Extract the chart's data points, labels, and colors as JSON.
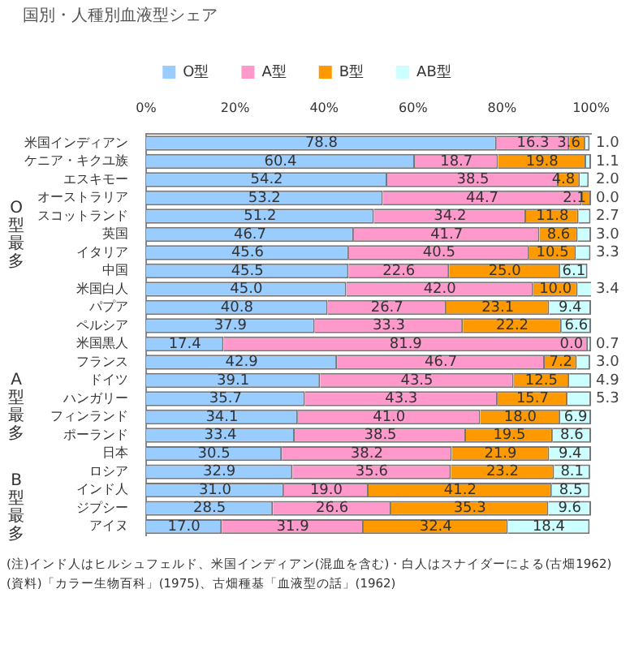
{
  "chart_data": {
    "type": "bar",
    "orientation": "horizontal",
    "stacked": true,
    "title": "国別・人種別血液型シェア",
    "categories": [
      "米国インディアン",
      "ケニア・キクユ族",
      "エスキモー",
      "オーストラリア",
      "スコットランド",
      "英国",
      "イタリア",
      "中国",
      "米国白人",
      "パプア",
      "ペルシア",
      "米国黒人",
      "フランス",
      "ドイツ",
      "ハンガリー",
      "フィンランド",
      "ポーランド",
      "日本",
      "ロシア",
      "インド人",
      "ジプシー",
      "アイヌ"
    ],
    "series": [
      {
        "name": "O型",
        "color": "#99ccff",
        "values": [
          78.8,
          60.4,
          54.2,
          53.2,
          51.2,
          46.7,
          45.6,
          45.5,
          45.0,
          40.8,
          37.9,
          17.4,
          42.9,
          39.1,
          35.7,
          34.1,
          33.4,
          30.5,
          32.9,
          31.0,
          28.5,
          17.0
        ],
        "value_labels": [
          "78.8",
          "60.4",
          "54.2",
          "53.2",
          "51.2",
          "46.7",
          "45.6",
          "45.5",
          "45.0",
          "40.8",
          "37.9",
          "17.4",
          "42.9",
          "39.1",
          "35.7",
          "34.1",
          "33.4",
          "30.5",
          "32.9",
          "31.0",
          "28.5",
          "17.0"
        ]
      },
      {
        "name": "A型",
        "color": "#ff99cc",
        "values": [
          16.3,
          18.7,
          38.5,
          44.7,
          34.2,
          41.7,
          40.5,
          22.6,
          42.0,
          26.7,
          33.3,
          81.9,
          46.7,
          43.5,
          43.3,
          41.0,
          38.5,
          38.2,
          35.6,
          19.0,
          26.6,
          31.9
        ],
        "value_labels": [
          "16.3",
          "18.7",
          "38.5",
          "44.7",
          "34.2",
          "41.7",
          "40.5",
          "22.6",
          "42.0",
          "26.7",
          "33.3",
          "81.9",
          "46.7",
          "43.5",
          "43.3",
          "41.0",
          "38.5",
          "38.2",
          "35.6",
          "19.0",
          "26.6",
          "31.9"
        ]
      },
      {
        "name": "B型",
        "color": "#ff9900",
        "values": [
          3.6,
          19.8,
          4.8,
          2.1,
          11.8,
          8.6,
          10.5,
          25.0,
          10.0,
          23.1,
          22.2,
          0.0,
          7.2,
          12.5,
          15.7,
          18.0,
          19.5,
          21.9,
          23.2,
          41.2,
          35.3,
          32.4
        ],
        "value_labels": [
          "3.6",
          "19.8",
          "4.8",
          "2.1",
          "11.8",
          "8.6",
          "10.5",
          "25.0",
          "10.0",
          "23.1",
          "22.2",
          "0.0",
          "7.2",
          "12.5",
          "15.7",
          "18.0",
          "19.5",
          "21.9",
          "23.2",
          "41.2",
          "35.3",
          "32.4"
        ]
      },
      {
        "name": "AB型",
        "color": "#ccffff",
        "values": [
          1.0,
          1.1,
          2.0,
          0.0,
          2.7,
          3.0,
          3.3,
          6.1,
          3.4,
          9.4,
          6.6,
          0.7,
          3.0,
          4.9,
          5.3,
          6.9,
          8.6,
          9.4,
          8.1,
          8.5,
          9.6,
          18.4
        ],
        "value_labels": [
          "1.0",
          "1.1",
          "2.0",
          "0.0",
          "2.7",
          "3.0",
          "3.3",
          "6.1",
          "3.4",
          "9.4",
          "6.6",
          "0.7",
          "3.0",
          "4.9",
          "5.3",
          "6.9",
          "8.6",
          "9.4",
          "8.1",
          "8.5",
          "9.6",
          "18.4"
        ]
      }
    ],
    "xlim": [
      0,
      100
    ],
    "xticks": [
      {
        "value": 0,
        "label": "0%"
      },
      {
        "value": 20,
        "label": "20%"
      },
      {
        "value": 40,
        "label": "40%"
      },
      {
        "value": 60,
        "label": "60%"
      },
      {
        "value": 80,
        "label": "80%"
      },
      {
        "value": 100,
        "label": "100%"
      }
    ],
    "grid": false,
    "legend": "top",
    "annotations": [
      "O型最多",
      "A型最多",
      "B型最多",
      "(注)インド人はヒルシュフェルド、米国インディアン(混血を含む)・白人はスナイダーによる(古畑1962)",
      "(資料)「カラー生物百科」(1975)、古畑種基「血液型の話」(1962)"
    ]
  }
}
